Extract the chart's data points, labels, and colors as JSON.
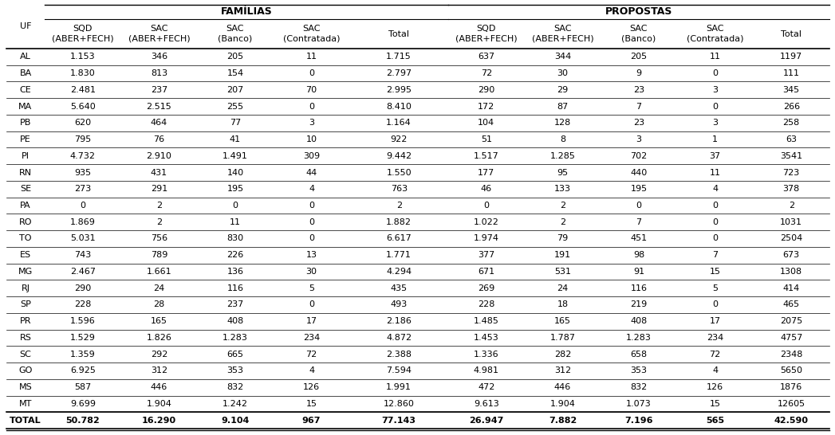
{
  "col_headers_group1": "FAMÍLIAS",
  "col_headers_group2": "PROPOSTAS",
  "sub_headers_fam": [
    "SQD\n(ABER+FECH)",
    "SAC\n(ABER+FECH)",
    "SAC\n(Banco)",
    "SAC\n(Contratada)",
    "Total"
  ],
  "sub_headers_prop": [
    "SQD\n(ABER+FECH)",
    "SAC\n(ABER+FECH)",
    "SAC\n(Banco)",
    "SAC\n(Contratada)",
    "Total"
  ],
  "uf_col": "UF",
  "rows": [
    [
      "AL",
      "1.153",
      "346",
      "205",
      "11",
      "1.715",
      "637",
      "344",
      "205",
      "11",
      "1197"
    ],
    [
      "BA",
      "1.830",
      "813",
      "154",
      "0",
      "2.797",
      "72",
      "30",
      "9",
      "0",
      "111"
    ],
    [
      "CE",
      "2.481",
      "237",
      "207",
      "70",
      "2.995",
      "290",
      "29",
      "23",
      "3",
      "345"
    ],
    [
      "MA",
      "5.640",
      "2.515",
      "255",
      "0",
      "8.410",
      "172",
      "87",
      "7",
      "0",
      "266"
    ],
    [
      "PB",
      "620",
      "464",
      "77",
      "3",
      "1.164",
      "104",
      "128",
      "23",
      "3",
      "258"
    ],
    [
      "PE",
      "795",
      "76",
      "41",
      "10",
      "922",
      "51",
      "8",
      "3",
      "1",
      "63"
    ],
    [
      "PI",
      "4.732",
      "2.910",
      "1.491",
      "309",
      "9.442",
      "1.517",
      "1.285",
      "702",
      "37",
      "3541"
    ],
    [
      "RN",
      "935",
      "431",
      "140",
      "44",
      "1.550",
      "177",
      "95",
      "440",
      "11",
      "723"
    ],
    [
      "SE",
      "273",
      "291",
      "195",
      "4",
      "763",
      "46",
      "133",
      "195",
      "4",
      "378"
    ],
    [
      "PA",
      "0",
      "2",
      "0",
      "0",
      "2",
      "0",
      "2",
      "0",
      "0",
      "2"
    ],
    [
      "RO",
      "1.869",
      "2",
      "11",
      "0",
      "1.882",
      "1.022",
      "2",
      "7",
      "0",
      "1031"
    ],
    [
      "TO",
      "5.031",
      "756",
      "830",
      "0",
      "6.617",
      "1.974",
      "79",
      "451",
      "0",
      "2504"
    ],
    [
      "ES",
      "743",
      "789",
      "226",
      "13",
      "1.771",
      "377",
      "191",
      "98",
      "7",
      "673"
    ],
    [
      "MG",
      "2.467",
      "1.661",
      "136",
      "30",
      "4.294",
      "671",
      "531",
      "91",
      "15",
      "1308"
    ],
    [
      "RJ",
      "290",
      "24",
      "116",
      "5",
      "435",
      "269",
      "24",
      "116",
      "5",
      "414"
    ],
    [
      "SP",
      "228",
      "28",
      "237",
      "0",
      "493",
      "228",
      "18",
      "219",
      "0",
      "465"
    ],
    [
      "PR",
      "1.596",
      "165",
      "408",
      "17",
      "2.186",
      "1.485",
      "165",
      "408",
      "17",
      "2075"
    ],
    [
      "RS",
      "1.529",
      "1.826",
      "1.283",
      "234",
      "4.872",
      "1.453",
      "1.787",
      "1.283",
      "234",
      "4757"
    ],
    [
      "SC",
      "1.359",
      "292",
      "665",
      "72",
      "2.388",
      "1.336",
      "282",
      "658",
      "72",
      "2348"
    ],
    [
      "GO",
      "6.925",
      "312",
      "353",
      "4",
      "7.594",
      "4.981",
      "312",
      "353",
      "4",
      "5650"
    ],
    [
      "MS",
      "587",
      "446",
      "832",
      "126",
      "1.991",
      "472",
      "446",
      "832",
      "126",
      "1876"
    ],
    [
      "MT",
      "9.699",
      "1.904",
      "1.242",
      "15",
      "12.860",
      "9.613",
      "1.904",
      "1.073",
      "15",
      "12605"
    ]
  ],
  "total_row": [
    "TOTAL",
    "50.782",
    "16.290",
    "9.104",
    "967",
    "77.143",
    "26.947",
    "7.882",
    "7.196",
    "565",
    "42.590"
  ],
  "bg_color": "#ffffff",
  "line_color": "#000000",
  "text_color": "#000000",
  "fontsize": 8.0,
  "header_fontsize": 9.0
}
